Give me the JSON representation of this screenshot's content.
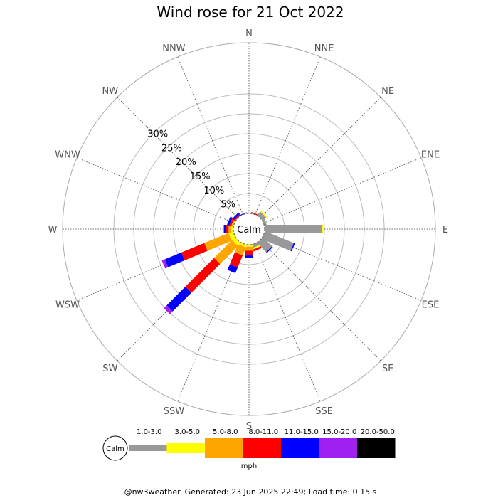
{
  "chart_data": {
    "type": "wind-rose",
    "title": "Wind rose for 21 Oct 2022",
    "directions": [
      "N",
      "NNE",
      "NE",
      "ENE",
      "E",
      "ESE",
      "SE",
      "SSE",
      "S",
      "SSW",
      "SW",
      "WSW",
      "W",
      "WNW",
      "NW",
      "NNW"
    ],
    "radial_ticks": [
      "5%",
      "10%",
      "15%",
      "20%",
      "25%",
      "30%"
    ],
    "rmax_percent": 30,
    "calm_label": "Calm",
    "speed_bins": [
      {
        "label": "1.0-3.0",
        "color": "#999999"
      },
      {
        "label": "3.0-5.0",
        "color": "#ffff00"
      },
      {
        "label": "5.0-8.0",
        "color": "#ffa500"
      },
      {
        "label": "8.0-11.0",
        "color": "#ff0000"
      },
      {
        "label": "11.0-15.0",
        "color": "#0000ff"
      },
      {
        "label": "15.0-20.0",
        "color": "#a020f0"
      },
      {
        "label": "20.0-50.0",
        "color": "#000000"
      }
    ],
    "unit_label": "mph",
    "series": [
      {
        "direction": "N",
        "segments": [
          0,
          0,
          0,
          0,
          0,
          0,
          0
        ]
      },
      {
        "direction": "NNE",
        "segments": [
          0,
          0,
          0,
          0.3,
          0,
          0,
          0
        ]
      },
      {
        "direction": "NE",
        "segments": [
          1.2,
          0.3,
          0,
          0,
          0,
          0,
          0
        ]
      },
      {
        "direction": "ENE",
        "segments": [
          0.6,
          0,
          0,
          0,
          0,
          0,
          0
        ]
      },
      {
        "direction": "E",
        "segments": [
          14.3,
          0.4,
          0,
          0,
          0,
          0,
          0
        ]
      },
      {
        "direction": "ESE",
        "segments": [
          7.8,
          0,
          0,
          0,
          0.3,
          0,
          0
        ]
      },
      {
        "direction": "SE",
        "segments": [
          3.2,
          0,
          0,
          0,
          0.3,
          0,
          0
        ]
      },
      {
        "direction": "SSE",
        "segments": [
          0.8,
          0.4,
          0,
          0.5,
          0,
          0,
          0
        ]
      },
      {
        "direction": "S",
        "segments": [
          0,
          0.5,
          1.0,
          1.2,
          0.6,
          0,
          0
        ]
      },
      {
        "direction": "SSW",
        "segments": [
          0,
          0.6,
          2.2,
          3.3,
          1.5,
          0,
          0
        ]
      },
      {
        "direction": "SW",
        "segments": [
          0,
          1.0,
          6.4,
          10.2,
          6.6,
          1.0,
          0
        ]
      },
      {
        "direction": "WSW",
        "segments": [
          0,
          1.2,
          6.6,
          6.2,
          4.5,
          0.8,
          0
        ]
      },
      {
        "direction": "W",
        "segments": [
          0,
          0.5,
          0.7,
          0.6,
          0.6,
          0,
          0
        ]
      },
      {
        "direction": "WNW",
        "segments": [
          0,
          0.2,
          0.3,
          0.5,
          0.6,
          0,
          0
        ]
      },
      {
        "direction": "NW",
        "segments": [
          0,
          0,
          0,
          0.4,
          0.5,
          0,
          0
        ]
      },
      {
        "direction": "NNW",
        "segments": [
          0,
          0,
          0,
          0,
          0.2,
          0,
          0
        ]
      }
    ]
  },
  "footer": "@nw3weather. Generated: 23 Jun 2025 22:49; Load time: 0.15 s"
}
